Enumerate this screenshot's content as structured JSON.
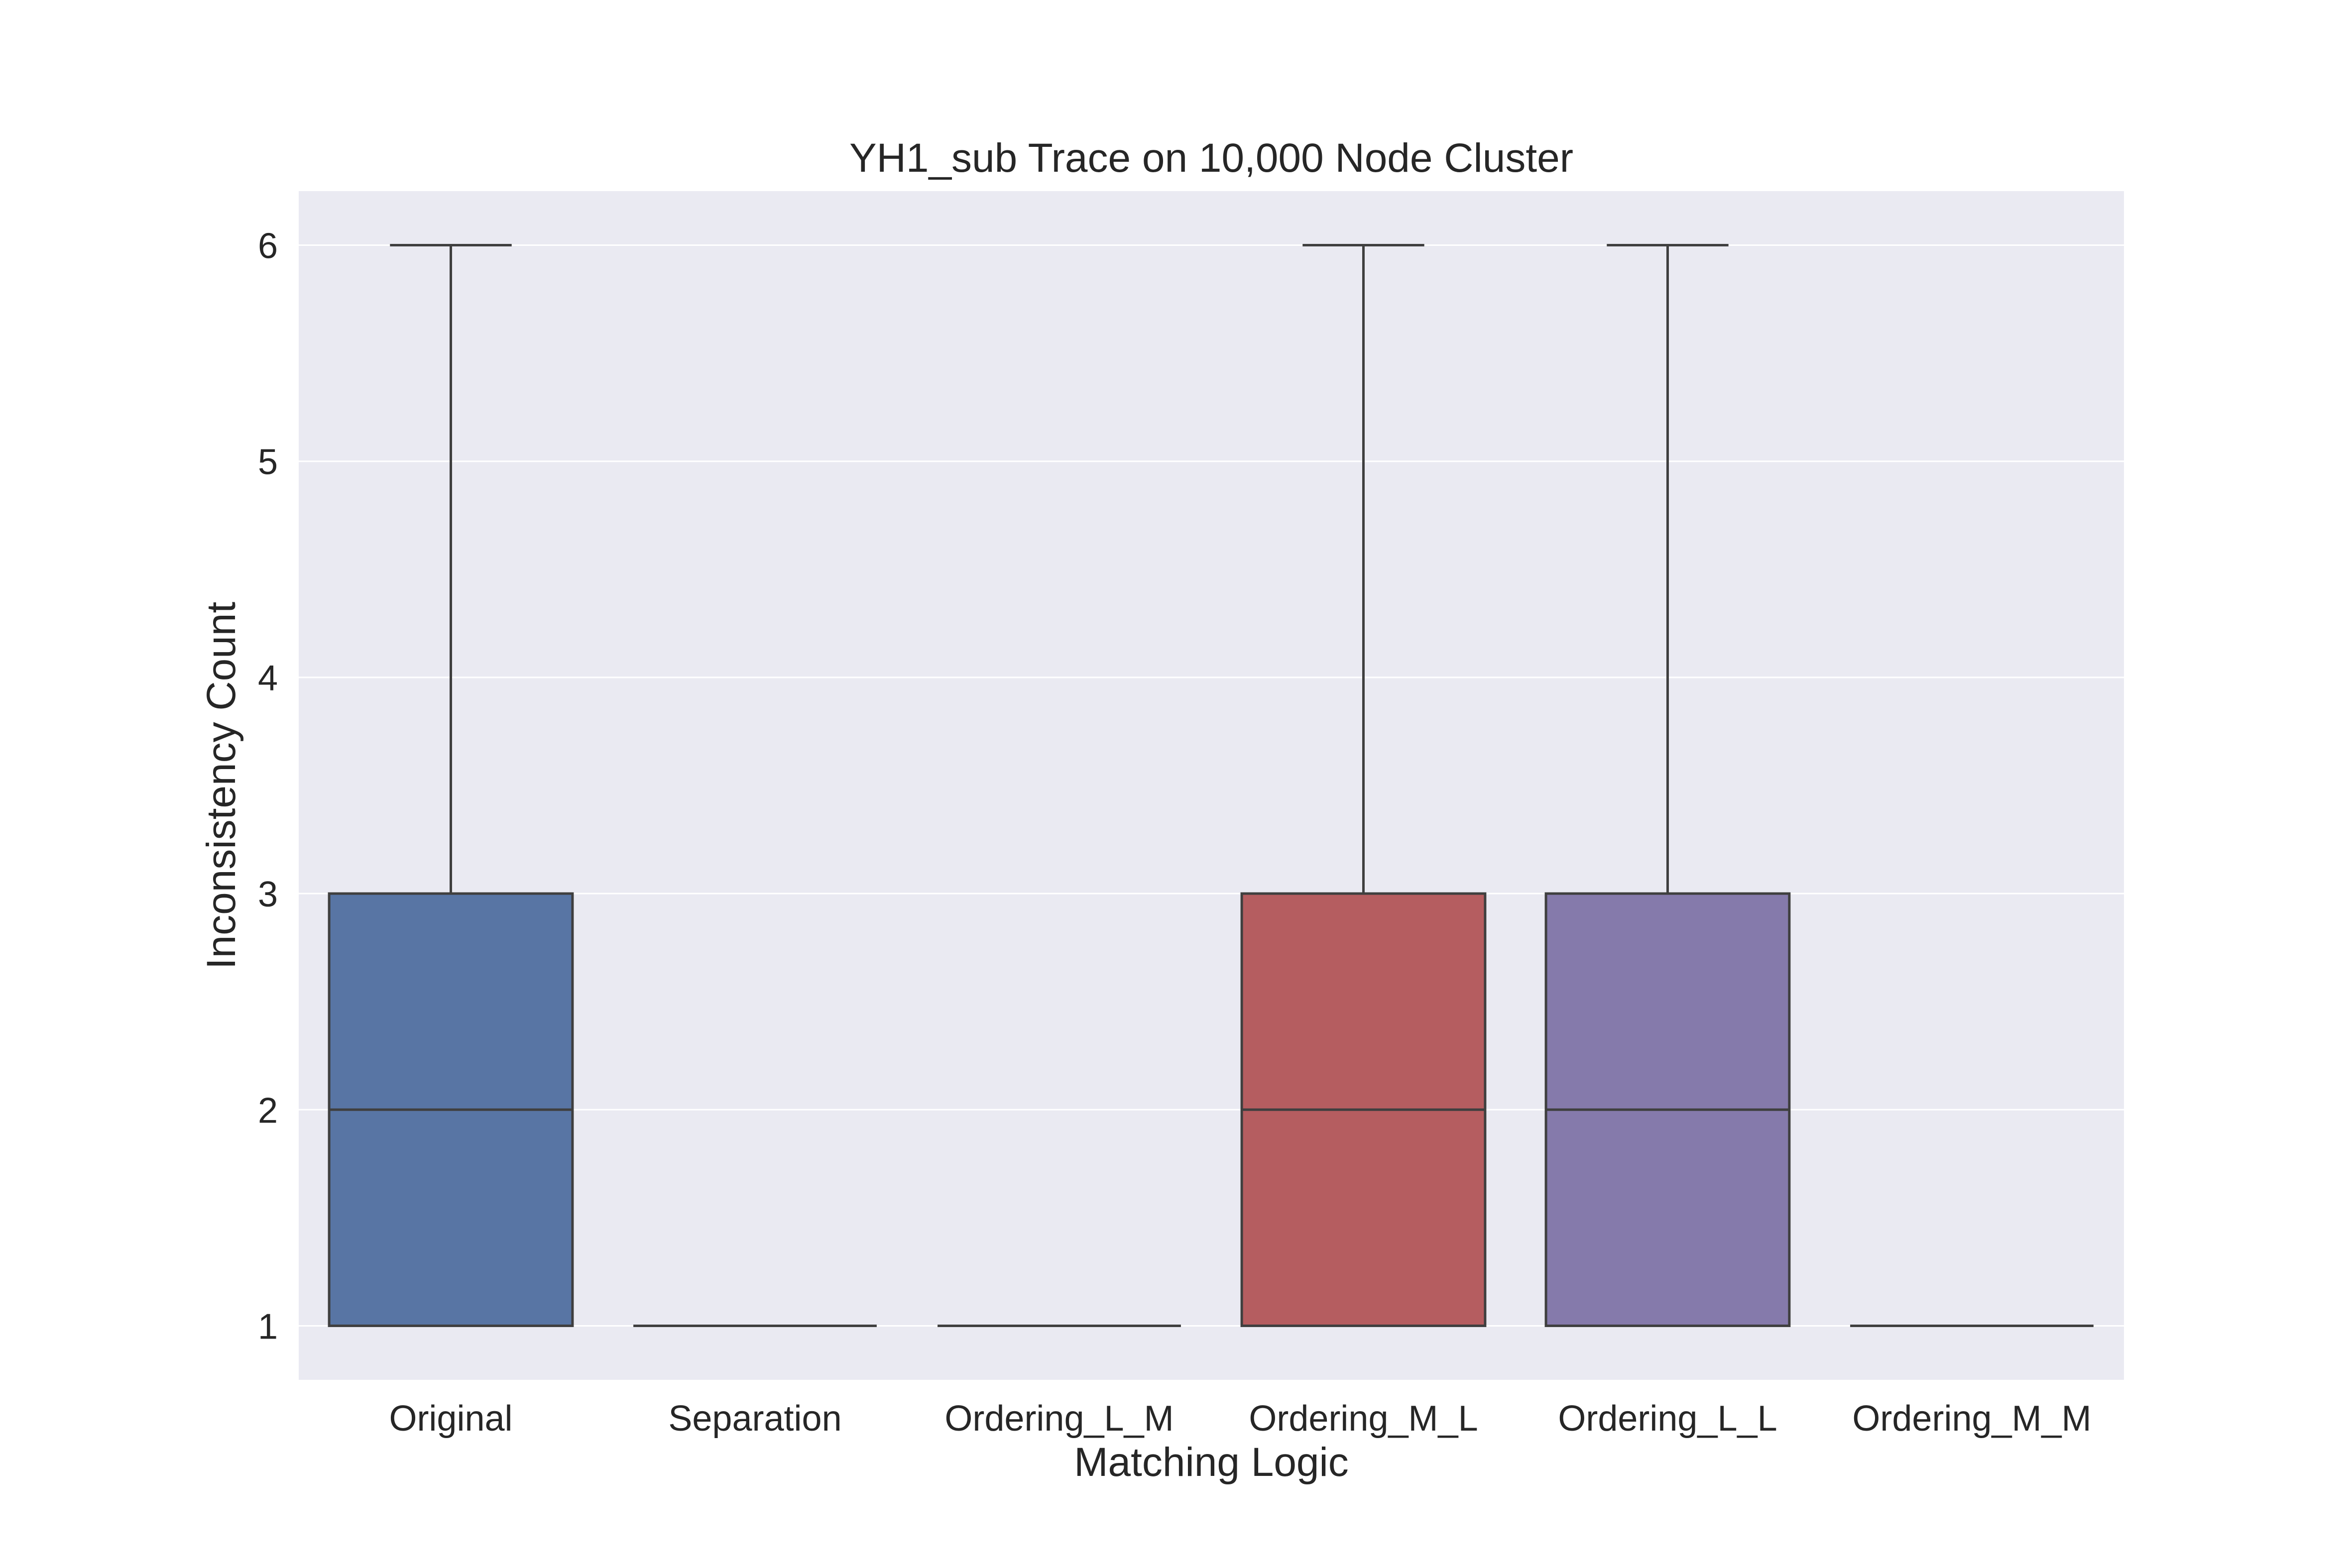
{
  "chart_data": {
    "type": "box",
    "title": "YH1_sub Trace on 10,000 Node Cluster",
    "xlabel": "Matching Logic",
    "ylabel": "Inconsistency Count",
    "categories": [
      "Original",
      "Separation",
      "Ordering_L_M",
      "Ordering_M_L",
      "Ordering_L_L",
      "Ordering_M_M"
    ],
    "boxes": [
      {
        "category": "Original",
        "whisker_low": 1,
        "q1": 1,
        "median": 2,
        "q3": 3,
        "whisker_high": 6,
        "color": "#5875a4"
      },
      {
        "category": "Separation",
        "whisker_low": 1,
        "q1": 1,
        "median": 1,
        "q3": 1,
        "whisker_high": 1,
        "color": "#cc8963"
      },
      {
        "category": "Ordering_L_M",
        "whisker_low": 1,
        "q1": 1,
        "median": 1,
        "q3": 1,
        "whisker_high": 1,
        "color": "#5f9e6e"
      },
      {
        "category": "Ordering_M_L",
        "whisker_low": 1,
        "q1": 1,
        "median": 2,
        "q3": 3,
        "whisker_high": 6,
        "color": "#b55d60"
      },
      {
        "category": "Ordering_L_L",
        "whisker_low": 1,
        "q1": 1,
        "median": 2,
        "q3": 3,
        "whisker_high": 6,
        "color": "#857aab"
      },
      {
        "category": "Ordering_M_M",
        "whisker_low": 1,
        "q1": 1,
        "median": 1,
        "q3": 1,
        "whisker_high": 1,
        "color": "#8d7866"
      }
    ],
    "yticks": [
      "1",
      "2",
      "3",
      "4",
      "5",
      "6"
    ],
    "ylim": [
      0.75,
      6.25
    ],
    "grid": true,
    "colors": {
      "plot_background": "#eaeaf2",
      "grid": "#ffffff",
      "box_edge": "#3f3f3f",
      "text": "#262626"
    }
  }
}
